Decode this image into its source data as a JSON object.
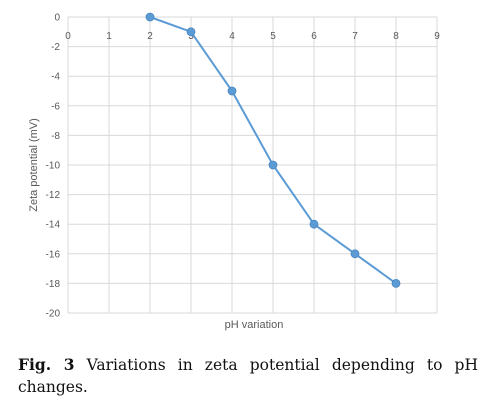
{
  "chart_data": {
    "type": "line",
    "xlabel": "pH variation",
    "ylabel": "Zeta potential (mV)",
    "xlim": [
      0,
      9
    ],
    "ylim": [
      -20,
      0
    ],
    "xticks": [
      0,
      1,
      2,
      3,
      4,
      5,
      6,
      7,
      8,
      9
    ],
    "yticks": [
      0,
      -2,
      -4,
      -6,
      -8,
      -10,
      -12,
      -14,
      -16,
      -18,
      -20
    ],
    "grid": true,
    "series_color": "#5b9bd5",
    "points": [
      {
        "x": 2,
        "y": 0
      },
      {
        "x": 3,
        "y": -1
      },
      {
        "x": 4,
        "y": -5
      },
      {
        "x": 5,
        "y": -10
      },
      {
        "x": 6,
        "y": -14
      },
      {
        "x": 7,
        "y": -16
      },
      {
        "x": 8,
        "y": -18
      }
    ]
  },
  "caption": {
    "label": "Fig. 3",
    "text": " Variations in zeta potential depending to pH changes."
  }
}
